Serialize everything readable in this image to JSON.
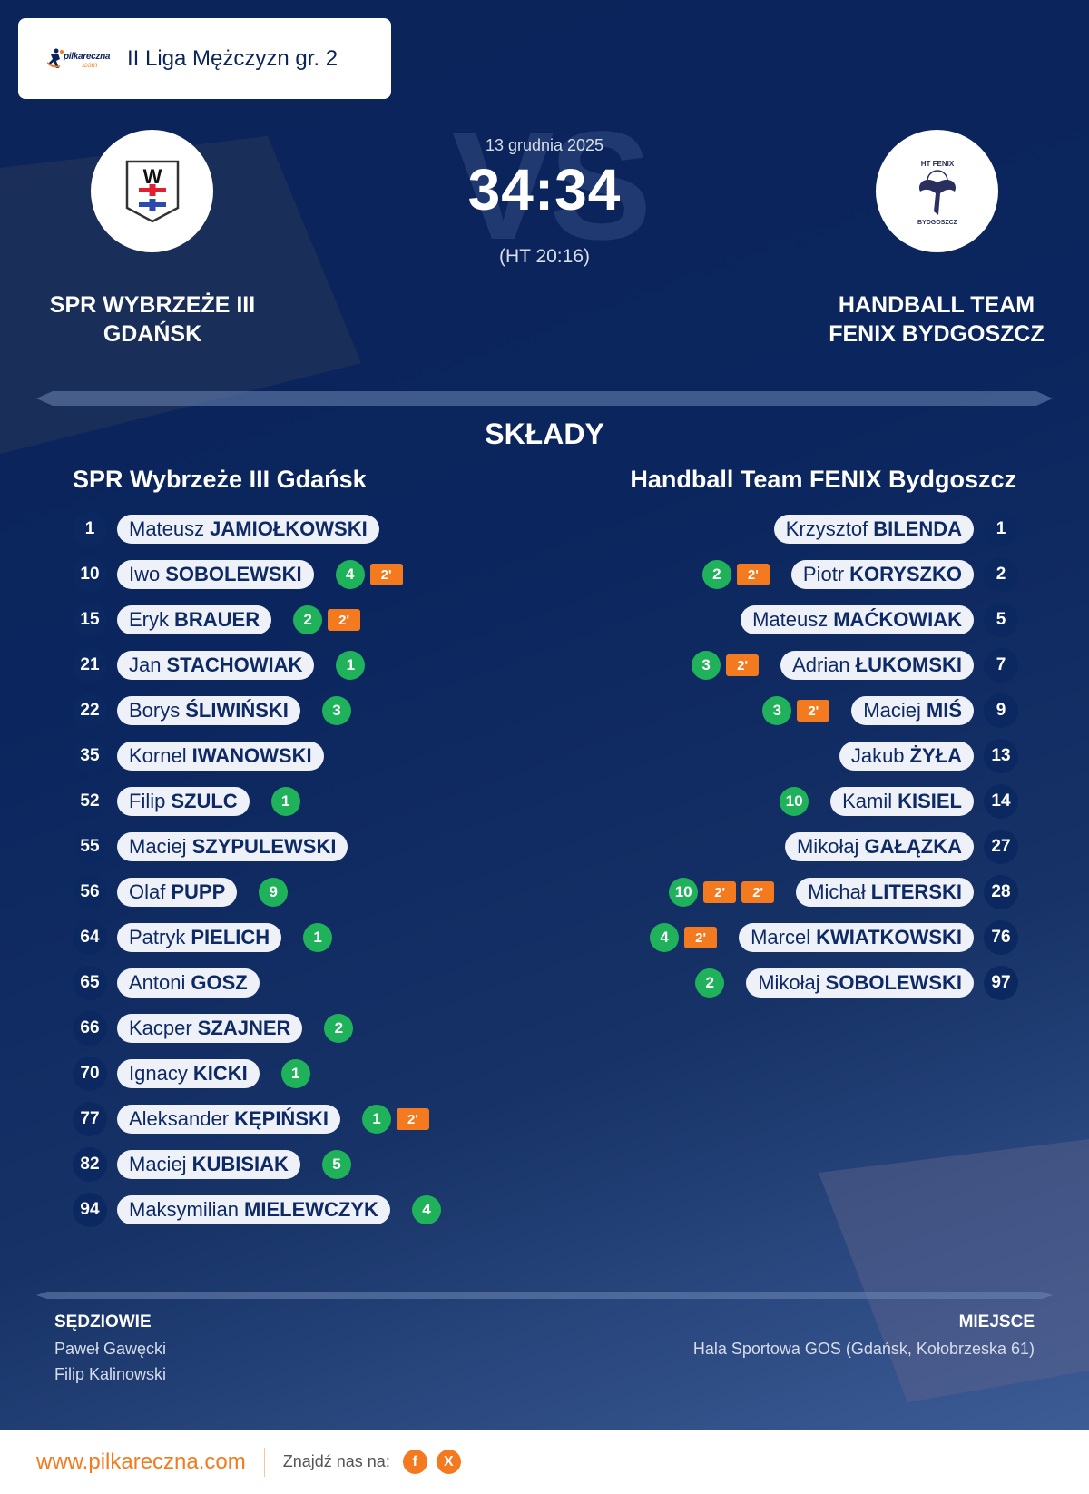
{
  "header": {
    "logo_text": "pilkareczna",
    "logo_domain": ".com",
    "league": "II Liga Mężczyzn gr. 2"
  },
  "match": {
    "date": "13 grudnia 2025",
    "score": "34:34",
    "halftime": "(HT 20:16)",
    "vs_watermark": "VS",
    "home_team_upper": [
      "SPR WYBRZEŻE III",
      "GDAŃSK"
    ],
    "away_team_upper": [
      "HANDBALL TEAM",
      "FENIX BYDGOSZCZ"
    ]
  },
  "squads": {
    "title": "SKŁADY",
    "home": {
      "name": "SPR Wybrzeże III Gdańsk",
      "players": [
        {
          "number": "1",
          "first": "Mateusz",
          "last": "JAMIOŁKOWSKI",
          "goals": null,
          "penalties": 0
        },
        {
          "number": "10",
          "first": "Iwo",
          "last": "SOBOLEWSKI",
          "goals": "4",
          "penalties": 1
        },
        {
          "number": "15",
          "first": "Eryk",
          "last": "BRAUER",
          "goals": "2",
          "penalties": 1
        },
        {
          "number": "21",
          "first": "Jan",
          "last": "STACHOWIAK",
          "goals": "1",
          "penalties": 0
        },
        {
          "number": "22",
          "first": "Borys",
          "last": "ŚLIWIŃSKI",
          "goals": "3",
          "penalties": 0
        },
        {
          "number": "35",
          "first": "Kornel",
          "last": "IWANOWSKI",
          "goals": null,
          "penalties": 0
        },
        {
          "number": "52",
          "first": "Filip",
          "last": "SZULC",
          "goals": "1",
          "penalties": 0
        },
        {
          "number": "55",
          "first": "Maciej",
          "last": "SZYPULEWSKI",
          "goals": null,
          "penalties": 0
        },
        {
          "number": "56",
          "first": "Olaf",
          "last": "PUPP",
          "goals": "9",
          "penalties": 0
        },
        {
          "number": "64",
          "first": "Patryk",
          "last": "PIELICH",
          "goals": "1",
          "penalties": 0
        },
        {
          "number": "65",
          "first": "Antoni",
          "last": "GOSZ",
          "goals": null,
          "penalties": 0
        },
        {
          "number": "66",
          "first": "Kacper",
          "last": "SZAJNER",
          "goals": "2",
          "penalties": 0
        },
        {
          "number": "70",
          "first": "Ignacy",
          "last": "KICKI",
          "goals": "1",
          "penalties": 0
        },
        {
          "number": "77",
          "first": "Aleksander",
          "last": "KĘPIŃSKI",
          "goals": "1",
          "penalties": 1
        },
        {
          "number": "82",
          "first": "Maciej",
          "last": "KUBISIAK",
          "goals": "5",
          "penalties": 0
        },
        {
          "number": "94",
          "first": "Maksymilian",
          "last": "MIELEWCZYK",
          "goals": "4",
          "penalties": 0
        }
      ]
    },
    "away": {
      "name": "Handball Team FENIX Bydgoszcz",
      "players": [
        {
          "number": "1",
          "first": "Krzysztof",
          "last": "BILENDA",
          "goals": null,
          "penalties": 0
        },
        {
          "number": "2",
          "first": "Piotr",
          "last": "KORYSZKO",
          "goals": "2",
          "penalties": 1
        },
        {
          "number": "5",
          "first": "Mateusz",
          "last": "MAĆKOWIAK",
          "goals": null,
          "penalties": 0
        },
        {
          "number": "7",
          "first": "Adrian",
          "last": "ŁUKOMSKI",
          "goals": "3",
          "penalties": 1
        },
        {
          "number": "9",
          "first": "Maciej",
          "last": "MIŚ",
          "goals": "3",
          "penalties": 1
        },
        {
          "number": "13",
          "first": "Jakub",
          "last": "ŻYŁA",
          "goals": null,
          "penalties": 0
        },
        {
          "number": "14",
          "first": "Kamil",
          "last": "KISIEL",
          "goals": "10",
          "penalties": 0
        },
        {
          "number": "27",
          "first": "Mikołaj",
          "last": "GAŁĄZKA",
          "goals": null,
          "penalties": 0
        },
        {
          "number": "28",
          "first": "Michał",
          "last": "LITERSKI",
          "goals": "10",
          "penalties": 2
        },
        {
          "number": "76",
          "first": "Marcel",
          "last": "KWIATKOWSKI",
          "goals": "4",
          "penalties": 1
        },
        {
          "number": "97",
          "first": "Mikołaj",
          "last": "SOBOLEWSKI",
          "goals": "2",
          "penalties": 0
        }
      ]
    },
    "penalty_label": "2'"
  },
  "officials": {
    "referees_label": "SĘDZIOWIE",
    "referees": [
      "Paweł Gawęcki",
      "Filip Kalinowski"
    ],
    "venue_label": "MIEJSCE",
    "venue": "Hala Sportowa GOS (Gdańsk, Kołobrzeska 61)"
  },
  "footer": {
    "url": "www.pilkareczna.com",
    "find_us": "Znajdź nas na:",
    "social": [
      {
        "name": "facebook",
        "glyph": "f"
      },
      {
        "name": "x",
        "glyph": "X"
      }
    ]
  },
  "colors": {
    "navy": "#0b2459",
    "goal_green": "#1fb25a",
    "penalty_orange": "#f47a1f",
    "pill_bg": "#eff1f8"
  }
}
